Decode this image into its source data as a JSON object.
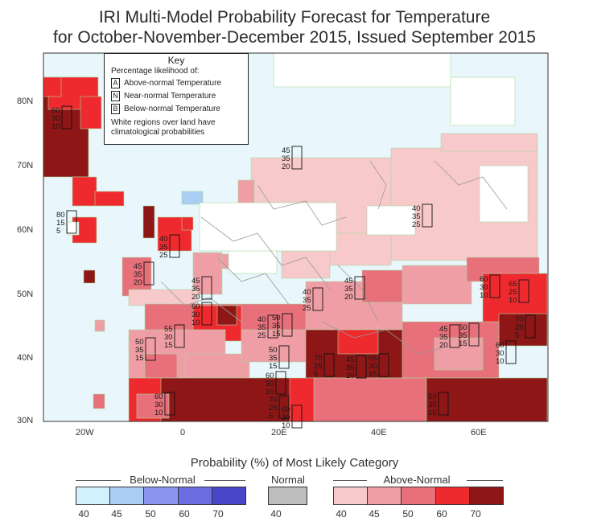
{
  "title_line1": "IRI Multi-Model Probability Forecast for Temperature",
  "title_line2": "for October-November-December 2015, Issued September 2015",
  "key": {
    "title": "Key",
    "label": "Percentage likelihood of:",
    "rows": [
      {
        "letter": "A",
        "text": "Above-normal Temperature"
      },
      {
        "letter": "N",
        "text": "Near-normal Temperature"
      },
      {
        "letter": "B",
        "text": "Below-normal Temperature"
      }
    ],
    "note_line1": "White regions over land have",
    "note_line2": "climatological probabilities"
  },
  "lat_labels": [
    "80N",
    "70N",
    "60N",
    "50N",
    "40N",
    "30N"
  ],
  "lon_labels": [
    "20W",
    "0",
    "20E",
    "40E",
    "60E"
  ],
  "legend": {
    "title": "Probability (%) of Most Likely Category",
    "below_title": "Below-Normal",
    "normal_title": "Normal",
    "above_title": "Above-Normal",
    "below_ticks": [
      "40",
      "45",
      "50",
      "60",
      "70"
    ],
    "normal_ticks": [
      "40"
    ],
    "above_ticks": [
      "40",
      "45",
      "50",
      "60",
      "70"
    ],
    "below_colors": [
      "#d2f2fb",
      "#a9cdf3",
      "#8a95ef",
      "#6a6de0",
      "#4845c8"
    ],
    "normal_colors": [
      "#bdbdbd"
    ],
    "above_colors": [
      "#f7c9cb",
      "#f09ea5",
      "#e8707b",
      "#ef2a2e",
      "#8e1616"
    ]
  },
  "colors": {
    "ocean": "#e9f7fc",
    "land_default": "#ffffff",
    "coast": "#a9d7a0",
    "border": "#9a9a9a"
  },
  "annotations": [
    {
      "a": "45",
      "n": "35",
      "b": "20"
    },
    {
      "a": "40",
      "n": "35",
      "b": "25"
    },
    {
      "a": "80",
      "n": "15",
      "b": "5"
    },
    {
      "a": "60",
      "n": "30",
      "b": "10"
    },
    {
      "a": "40",
      "n": "35",
      "b": "25"
    },
    {
      "a": "45",
      "n": "35",
      "b": "20"
    },
    {
      "a": "45",
      "n": "35",
      "b": "20"
    },
    {
      "a": "60",
      "n": "30",
      "b": "10"
    },
    {
      "a": "40",
      "n": "35",
      "b": "25"
    },
    {
      "a": "40",
      "n": "35",
      "b": "25"
    },
    {
      "a": "45",
      "n": "35",
      "b": "20"
    },
    {
      "a": "60",
      "n": "30",
      "b": "10"
    },
    {
      "a": "65",
      "n": "25",
      "b": "10"
    },
    {
      "a": "55",
      "n": "30",
      "b": "15"
    },
    {
      "a": "50",
      "n": "35",
      "b": "15"
    },
    {
      "a": "50",
      "n": "35",
      "b": "15"
    },
    {
      "a": "60",
      "n": "30",
      "b": "10"
    },
    {
      "a": "50",
      "n": "35",
      "b": "15"
    },
    {
      "a": "45",
      "n": "35",
      "b": "20"
    },
    {
      "a": "50",
      "n": "35",
      "b": "15"
    },
    {
      "a": "45",
      "n": "35",
      "b": "20"
    },
    {
      "a": "70",
      "n": "25",
      "b": "5"
    },
    {
      "a": "55",
      "n": "30",
      "b": "15"
    },
    {
      "a": "60",
      "n": "30",
      "b": "10"
    },
    {
      "a": "70",
      "n": "25",
      "b": "5"
    },
    {
      "a": "60",
      "n": "30",
      "b": "10"
    },
    {
      "a": "50",
      "n": "35",
      "b": "15"
    },
    {
      "a": "60",
      "n": "30",
      "b": "10"
    },
    {
      "a": "70",
      "n": "25",
      "b": "5"
    }
  ]
}
